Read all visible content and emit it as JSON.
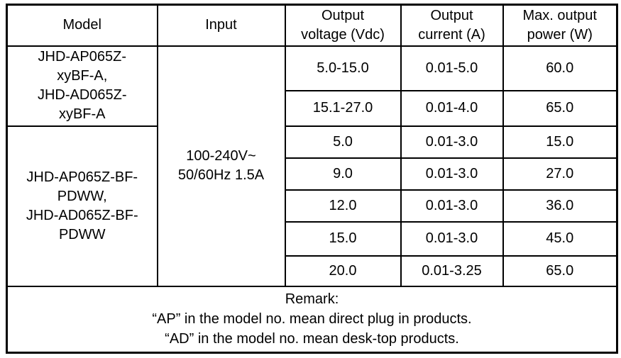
{
  "table": {
    "headers": {
      "model": "Model",
      "input": "Input",
      "voltage": "Output\nvoltage (Vdc)",
      "current": "Output\ncurrent (A)",
      "power": "Max. output\npower (W)"
    },
    "model_groups": [
      {
        "name": "JHD-AP065Z-\nxyBF-A,\nJHD-AD065Z-\nxyBF-A"
      },
      {
        "name": "JHD-AP065Z-BF-\nPDWW,\nJHD-AD065Z-BF-\nPDWW"
      }
    ],
    "input_value": "100-240V~\n50/60Hz 1.5A",
    "rows": [
      {
        "voltage": "5.0-15.0",
        "current": "0.01-5.0",
        "power": "60.0"
      },
      {
        "voltage": "15.1-27.0",
        "current": "0.01-4.0",
        "power": "65.0"
      },
      {
        "voltage": "5.0",
        "current": "0.01-3.0",
        "power": "15.0"
      },
      {
        "voltage": "9.0",
        "current": "0.01-3.0",
        "power": "27.0"
      },
      {
        "voltage": "12.0",
        "current": "0.01-3.0",
        "power": "36.0"
      },
      {
        "voltage": "15.0",
        "current": "0.01-3.0",
        "power": "45.0"
      },
      {
        "voltage": "20.0",
        "current": "0.01-3.25",
        "power": "65.0"
      }
    ],
    "remark": "Remark:\n“AP” in the model no. mean direct plug in products.\n“AD” in the model no. mean desk-top products.",
    "border_color": "#000000",
    "background_color": "#ffffff"
  }
}
